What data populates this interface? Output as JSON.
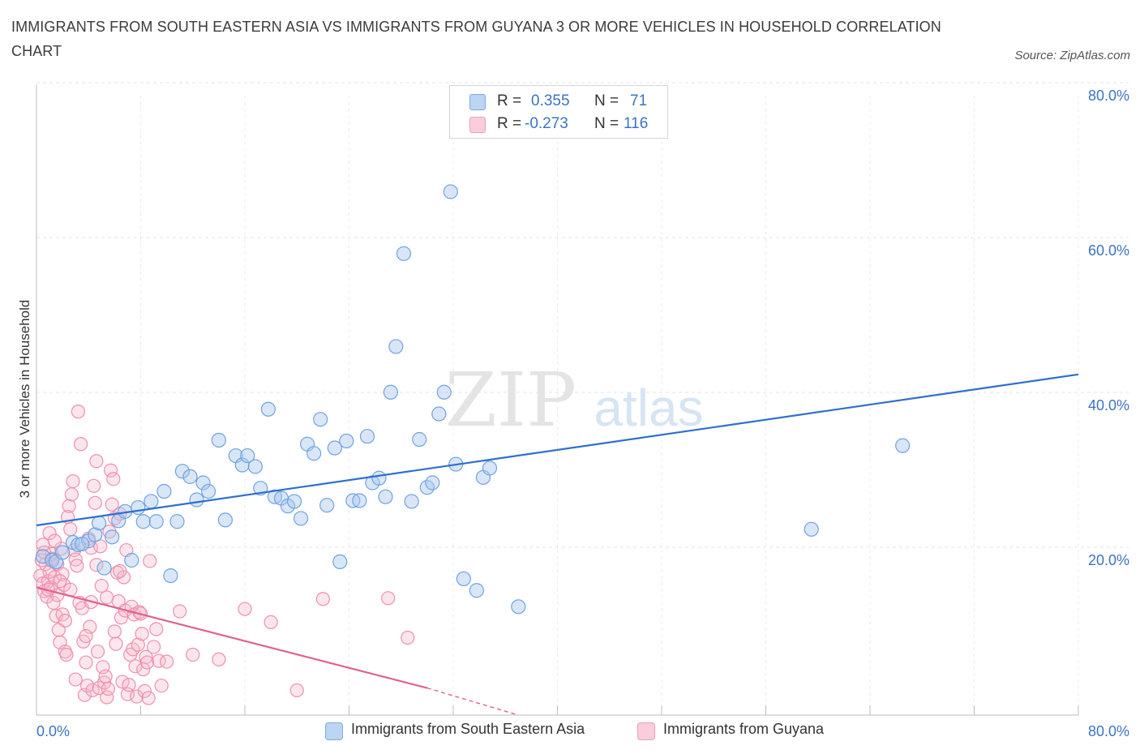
{
  "title": "IMMIGRANTS FROM SOUTH EASTERN ASIA VS IMMIGRANTS FROM GUYANA 3 OR MORE VEHICLES IN HOUSEHOLD CORRELATION CHART",
  "source": "Source: ZipAtlas.com",
  "watermark": {
    "zip": "ZIP",
    "atlas": "atlas"
  },
  "legend": {
    "r_label": "R =",
    "n_label": "N =",
    "rows": [
      {
        "r": "0.355",
        "n": "71",
        "color": "#a9c8ef"
      },
      {
        "r": "-0.273",
        "n": "116",
        "color": "#f6b8cc"
      }
    ]
  },
  "colors": {
    "blue": "#6fa3e0",
    "blue_line": "#2f6fcd",
    "pink": "#ef8fac",
    "pink_line": "#e0628d",
    "axis_label": "#3a74c4"
  },
  "chart_data": {
    "type": "scatter",
    "xlabel": "",
    "ylabel": "3 or more Vehicles in Household",
    "xlim": [
      0,
      80
    ],
    "ylim": [
      0,
      80
    ],
    "x_tick_labels": [
      "0.0%",
      "80.0%"
    ],
    "y_tick_labels": [
      "20.0%",
      "40.0%",
      "60.0%",
      "80.0%"
    ],
    "y_ticks": [
      20,
      40,
      60,
      80
    ],
    "grid": true,
    "legend_position": "top-center",
    "series": [
      {
        "name": "Immigrants from South Eastern Asia",
        "color": "#6fa3e0",
        "trend": {
          "x": [
            0,
            80
          ],
          "y": [
            24.5,
            44.0
          ]
        },
        "points": [
          [
            0.5,
            20.5
          ],
          [
            1.2,
            20.0
          ],
          [
            1.5,
            19.8
          ],
          [
            2.0,
            21.0
          ],
          [
            2.8,
            22.3
          ],
          [
            3.2,
            22.0
          ],
          [
            4.0,
            22.5
          ],
          [
            4.5,
            23.3
          ],
          [
            4.8,
            24.8
          ],
          [
            5.2,
            19.0
          ],
          [
            5.8,
            23.0
          ],
          [
            6.3,
            25.1
          ],
          [
            6.8,
            26.3
          ],
          [
            7.3,
            20.0
          ],
          [
            7.8,
            26.8
          ],
          [
            8.2,
            25.0
          ],
          [
            8.8,
            27.6
          ],
          [
            9.2,
            25.0
          ],
          [
            9.8,
            28.9
          ],
          [
            10.3,
            18.0
          ],
          [
            10.8,
            25.0
          ],
          [
            11.2,
            31.5
          ],
          [
            11.8,
            30.8
          ],
          [
            12.3,
            27.8
          ],
          [
            12.8,
            30.0
          ],
          [
            13.2,
            28.9
          ],
          [
            14.0,
            35.5
          ],
          [
            14.5,
            25.2
          ],
          [
            15.3,
            33.5
          ],
          [
            15.8,
            32.3
          ],
          [
            16.2,
            33.5
          ],
          [
            16.8,
            32.1
          ],
          [
            17.2,
            29.3
          ],
          [
            17.8,
            39.5
          ],
          [
            18.3,
            28.2
          ],
          [
            18.8,
            28.0
          ],
          [
            19.3,
            27.0
          ],
          [
            19.8,
            27.6
          ],
          [
            20.3,
            25.4
          ],
          [
            20.8,
            35.0
          ],
          [
            21.3,
            33.8
          ],
          [
            21.8,
            38.2
          ],
          [
            22.3,
            27.1
          ],
          [
            22.9,
            34.5
          ],
          [
            23.3,
            19.8
          ],
          [
            23.8,
            35.4
          ],
          [
            24.3,
            27.7
          ],
          [
            24.8,
            27.7
          ],
          [
            25.4,
            36.0
          ],
          [
            25.8,
            30.0
          ],
          [
            26.3,
            30.6
          ],
          [
            26.8,
            28.2
          ],
          [
            27.2,
            41.7
          ],
          [
            27.6,
            47.6
          ],
          [
            28.2,
            59.6
          ],
          [
            28.8,
            27.6
          ],
          [
            29.4,
            35.6
          ],
          [
            30.0,
            29.4
          ],
          [
            30.4,
            30.0
          ],
          [
            30.9,
            38.9
          ],
          [
            31.3,
            41.7
          ],
          [
            31.8,
            67.6
          ],
          [
            32.2,
            32.4
          ],
          [
            32.8,
            17.6
          ],
          [
            33.8,
            16.1
          ],
          [
            34.3,
            30.7
          ],
          [
            34.8,
            31.9
          ],
          [
            37.0,
            14.0
          ],
          [
            59.5,
            24.0
          ],
          [
            66.5,
            34.8
          ],
          [
            3.5,
            22.1
          ]
        ]
      },
      {
        "name": "Immigrants from Guyana",
        "color": "#ef8fac",
        "trend": {
          "x": [
            0,
            30
          ],
          "y": [
            16.5,
            3.5
          ],
          "dashed_to": {
            "x": 37,
            "y": 0
          }
        },
        "points": [
          [
            0.3,
            18.0
          ],
          [
            0.5,
            17.0
          ],
          [
            0.6,
            16.0
          ],
          [
            0.7,
            19.5
          ],
          [
            0.8,
            15.3
          ],
          [
            0.9,
            17.3
          ],
          [
            1.0,
            18.5
          ],
          [
            1.1,
            16.5
          ],
          [
            1.2,
            20.8
          ],
          [
            1.3,
            14.5
          ],
          [
            1.4,
            17.8
          ],
          [
            1.5,
            12.8
          ],
          [
            1.6,
            19.5
          ],
          [
            1.7,
            11.0
          ],
          [
            1.8,
            9.4
          ],
          [
            1.9,
            21.5
          ],
          [
            2.0,
            18.2
          ],
          [
            2.1,
            16.8
          ],
          [
            2.2,
            8.2
          ],
          [
            2.3,
            7.8
          ],
          [
            2.4,
            25.6
          ],
          [
            2.5,
            27.0
          ],
          [
            2.6,
            24.0
          ],
          [
            2.7,
            28.5
          ],
          [
            2.8,
            30.2
          ],
          [
            2.9,
            21.3
          ],
          [
            3.0,
            20.1
          ],
          [
            3.1,
            19.3
          ],
          [
            3.2,
            39.2
          ],
          [
            3.3,
            14.5
          ],
          [
            3.4,
            35.0
          ],
          [
            3.5,
            13.8
          ],
          [
            3.6,
            9.5
          ],
          [
            3.7,
            2.6
          ],
          [
            3.8,
            6.8
          ],
          [
            3.9,
            3.8
          ],
          [
            4.0,
            22.8
          ],
          [
            4.1,
            11.4
          ],
          [
            4.2,
            21.6
          ],
          [
            4.3,
            3.2
          ],
          [
            4.4,
            29.6
          ],
          [
            4.5,
            27.4
          ],
          [
            4.6,
            32.8
          ],
          [
            4.7,
            8.2
          ],
          [
            4.8,
            3.5
          ],
          [
            4.9,
            21.8
          ],
          [
            5.0,
            16.7
          ],
          [
            5.1,
            6.2
          ],
          [
            5.2,
            4.2
          ],
          [
            5.3,
            5.0
          ],
          [
            5.4,
            2.3
          ],
          [
            5.5,
            3.4
          ],
          [
            5.6,
            23.7
          ],
          [
            5.7,
            31.6
          ],
          [
            5.8,
            27.2
          ],
          [
            5.9,
            30.5
          ],
          [
            6.0,
            10.8
          ],
          [
            6.1,
            9.2
          ],
          [
            6.2,
            18.4
          ],
          [
            6.3,
            14.7
          ],
          [
            6.4,
            26.0
          ],
          [
            6.5,
            12.6
          ],
          [
            6.6,
            4.3
          ],
          [
            6.7,
            17.8
          ],
          [
            6.8,
            13.5
          ],
          [
            6.9,
            21.3
          ],
          [
            7.0,
            2.7
          ],
          [
            7.1,
            3.9
          ],
          [
            7.2,
            7.8
          ],
          [
            7.3,
            14.0
          ],
          [
            7.4,
            8.5
          ],
          [
            7.5,
            13.0
          ],
          [
            7.6,
            6.3
          ],
          [
            7.7,
            2.4
          ],
          [
            7.8,
            9.1
          ],
          [
            7.9,
            13.3
          ],
          [
            8.0,
            13.1
          ],
          [
            8.1,
            10.5
          ],
          [
            8.2,
            5.9
          ],
          [
            8.3,
            3.1
          ],
          [
            8.4,
            7.5
          ],
          [
            8.5,
            6.8
          ],
          [
            8.6,
            2.2
          ],
          [
            8.7,
            19.9
          ],
          [
            9.0,
            8.8
          ],
          [
            9.2,
            11.1
          ],
          [
            9.4,
            7.0
          ],
          [
            9.6,
            3.8
          ],
          [
            10.0,
            6.9
          ],
          [
            11.0,
            13.4
          ],
          [
            12.0,
            7.8
          ],
          [
            14.0,
            7.2
          ],
          [
            16.0,
            13.7
          ],
          [
            18.0,
            12.0
          ],
          [
            20.0,
            3.2
          ],
          [
            22.0,
            15.0
          ],
          [
            27.0,
            15.1
          ],
          [
            28.5,
            10.0
          ],
          [
            0.4,
            20.0
          ],
          [
            0.5,
            22.0
          ],
          [
            0.6,
            21.0
          ],
          [
            1.0,
            23.5
          ],
          [
            1.2,
            20.2
          ],
          [
            1.4,
            22.5
          ],
          [
            1.6,
            15.5
          ],
          [
            1.8,
            17.3
          ],
          [
            2.0,
            13.0
          ],
          [
            2.2,
            12.2
          ],
          [
            2.6,
            16.2
          ],
          [
            3.0,
            4.6
          ],
          [
            3.8,
            10.2
          ],
          [
            4.2,
            14.6
          ],
          [
            4.6,
            19.4
          ],
          [
            5.4,
            15.2
          ],
          [
            6.0,
            25.4
          ],
          [
            6.4,
            18.6
          ],
          [
            0.9,
            16.2
          ]
        ]
      }
    ]
  },
  "bottom_legend": [
    {
      "label": "Immigrants from South Eastern Asia",
      "color": "#a9c8ef",
      "border": "#7aaae6"
    },
    {
      "label": "Immigrants from Guyana",
      "color": "#f6c0d1",
      "border": "#ef9fb8"
    }
  ]
}
